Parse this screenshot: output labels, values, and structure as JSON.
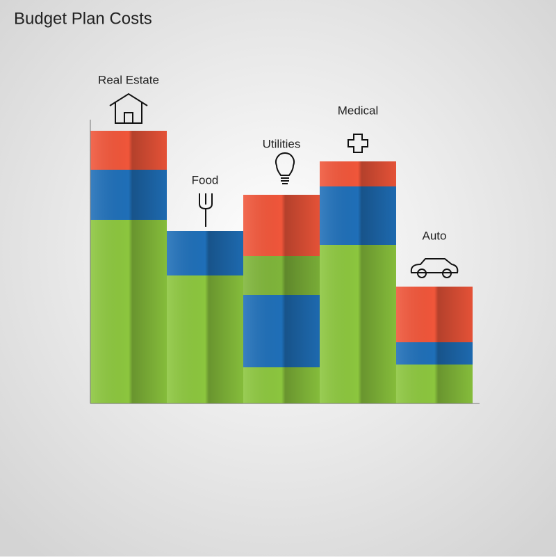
{
  "chart_data": {
    "type": "stacked_bar",
    "title": "Budget Plan Costs",
    "categories": [
      "Real Estate",
      "Food",
      "Utilities",
      "Medical",
      "Auto"
    ],
    "series": [
      {
        "color": "#8cc63e",
        "values": [
          66,
          46,
          13,
          57,
          14
        ]
      },
      {
        "color": "#1f6fb8",
        "values": [
          18,
          16,
          26,
          21,
          8
        ]
      },
      {
        "color": "#7fb53a",
        "values": [
          0,
          0,
          14,
          0,
          0
        ]
      },
      {
        "color": "#f0563a",
        "values": [
          14,
          0,
          22,
          9,
          20
        ]
      }
    ],
    "ylim": [
      0,
      100
    ]
  }
}
